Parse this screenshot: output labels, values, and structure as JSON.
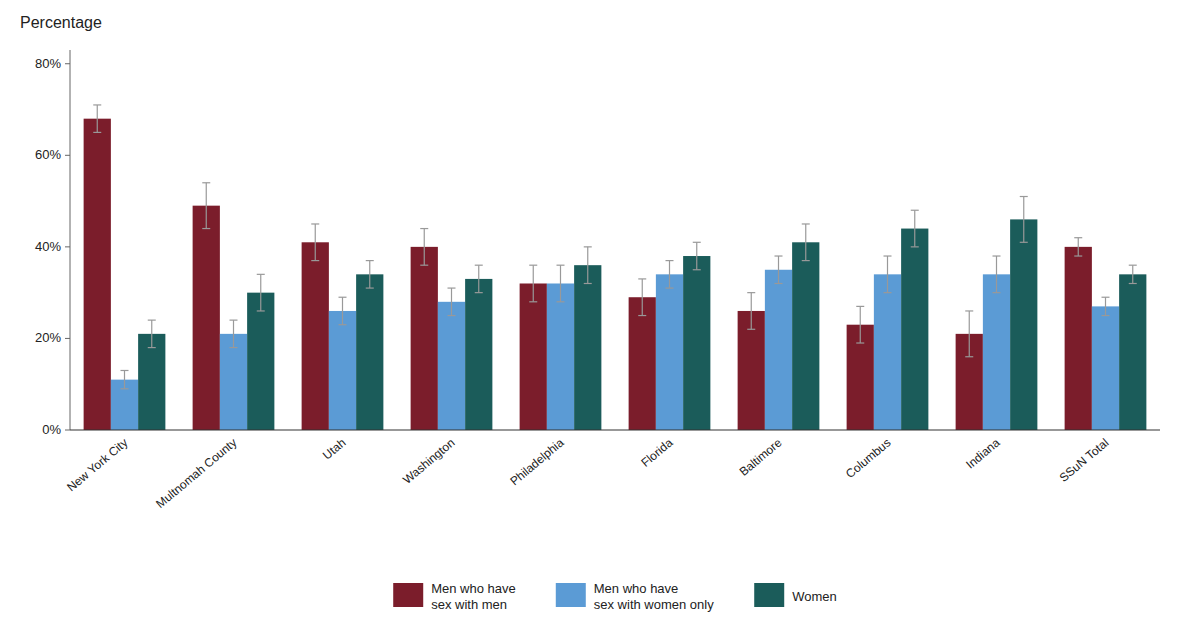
{
  "chart_data": {
    "type": "bar",
    "title": "Percentage",
    "categories": [
      "New York City",
      "Multnomah County",
      "Utah",
      "Washington",
      "Philadelphia",
      "Florida",
      "Baltimore",
      "Columbus",
      "Indiana",
      "SSuN Total"
    ],
    "series": [
      {
        "name": "Men who have\nsex with men",
        "color": "#7B1D2B",
        "values": [
          68,
          49,
          41,
          40,
          32,
          29,
          26,
          23,
          21,
          40
        ],
        "errors": [
          3,
          5,
          4,
          4,
          4,
          4,
          4,
          4,
          5,
          2
        ]
      },
      {
        "name": "Men who have\nsex with women only",
        "color": "#5B9BD5",
        "values": [
          11,
          21,
          26,
          28,
          32,
          34,
          35,
          34,
          34,
          27
        ],
        "errors": [
          2,
          3,
          3,
          3,
          4,
          3,
          3,
          4,
          4,
          2
        ]
      },
      {
        "name": "Women",
        "color": "#1B5C5A",
        "values": [
          21,
          30,
          34,
          33,
          36,
          38,
          41,
          44,
          46,
          34
        ],
        "errors": [
          3,
          4,
          3,
          3,
          4,
          3,
          4,
          4,
          5,
          2
        ]
      }
    ],
    "ylim": [
      0,
      83
    ],
    "yticks": [
      {
        "value": 0,
        "label": "0%"
      },
      {
        "value": 20,
        "label": "20%"
      },
      {
        "value": 40,
        "label": "40%"
      },
      {
        "value": 60,
        "label": "60%"
      },
      {
        "value": 80,
        "label": "80%"
      }
    ],
    "grid": false,
    "legend": "bottom"
  }
}
